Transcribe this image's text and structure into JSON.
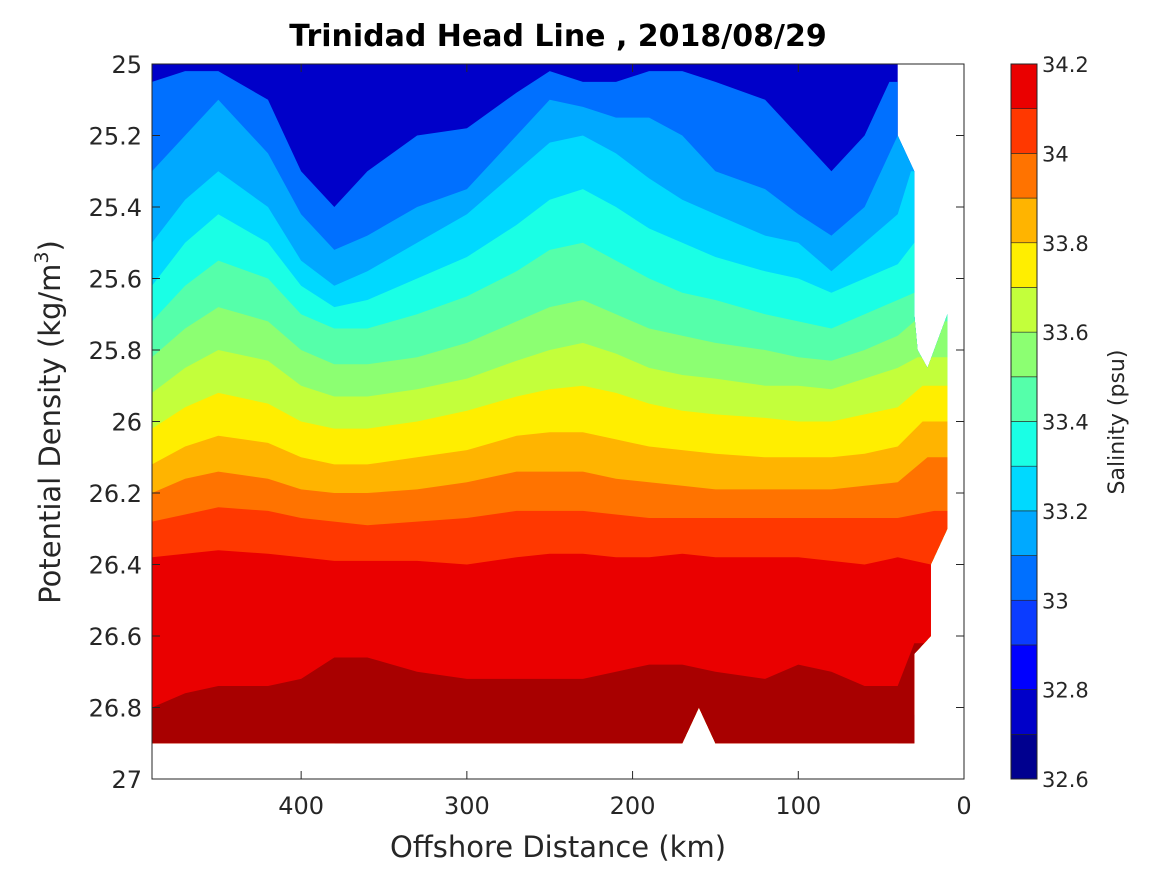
{
  "chart_data": {
    "type": "contour",
    "title": "Trinidad Head Line , 2018/08/29",
    "xlabel": "Offshore Distance (km)",
    "ylabel_prefix": "Potential Density (kg/m",
    "ylabel_sup": "3",
    "ylabel_suffix": ")",
    "colorbar_label": "Salinity (psu)",
    "xlim": [
      0,
      490
    ],
    "x_reversed": true,
    "xticks": [
      400,
      300,
      200,
      100,
      0
    ],
    "ylim": [
      25,
      27
    ],
    "y_reversed": true,
    "yticks": [
      25,
      25.2,
      25.4,
      25.6,
      25.8,
      26,
      26.2,
      26.4,
      26.6,
      26.8,
      27
    ],
    "colorbar_range": [
      32.6,
      34.2
    ],
    "colorbar_ticks": [
      32.6,
      32.8,
      33,
      33.2,
      33.4,
      33.6,
      33.8,
      34,
      34.2
    ],
    "levels": [
      32.6,
      32.7,
      32.8,
      32.9,
      33.0,
      33.1,
      33.2,
      33.3,
      33.4,
      33.5,
      33.6,
      33.7,
      33.8,
      33.9,
      34.0,
      34.1,
      34.2
    ],
    "level_colors": [
      "#00008f",
      "#0000c9",
      "#0000ff",
      "#0b3cff",
      "#0070ff",
      "#00a9ff",
      "#00d9ff",
      "#1affe5",
      "#55ffaa",
      "#8cff72",
      "#c3ff3b",
      "#ffee00",
      "#ffb400",
      "#ff7300",
      "#ff3800",
      "#ea0000",
      "#a80000"
    ],
    "data_extent": {
      "density_max": 26.9,
      "offshore_edge_km": [
        40,
        40,
        30,
        30,
        28,
        22,
        10,
        10,
        20,
        20,
        30,
        30
      ],
      "offshore_edge_density": [
        25.0,
        25.2,
        25.3,
        25.7,
        25.8,
        25.85,
        25.7,
        26.3,
        26.4,
        26.6,
        26.65,
        26.9
      ]
    },
    "contours": [
      {
        "level": 32.9,
        "x": [
          490,
          470,
          450,
          420,
          400,
          380,
          360,
          330,
          300,
          270,
          250,
          230,
          210,
          190,
          170,
          150,
          120,
          100,
          80,
          60,
          45
        ],
        "y": [
          25.05,
          25.02,
          25.02,
          25.1,
          25.3,
          25.4,
          25.3,
          25.2,
          25.18,
          25.08,
          25.02,
          25.05,
          25.05,
          25.02,
          25.02,
          25.05,
          25.1,
          25.2,
          25.3,
          25.2,
          25.05
        ]
      },
      {
        "level": 33.0,
        "x": [
          490,
          470,
          450,
          420,
          400,
          380,
          360,
          330,
          300,
          270,
          250,
          230,
          210,
          190,
          170,
          150,
          120,
          100,
          80,
          60,
          40
        ],
        "y": [
          25.3,
          25.2,
          25.1,
          25.25,
          25.42,
          25.52,
          25.48,
          25.4,
          25.35,
          25.2,
          25.1,
          25.12,
          25.15,
          25.15,
          25.2,
          25.3,
          25.35,
          25.42,
          25.48,
          25.4,
          25.2
        ]
      },
      {
        "level": 33.1,
        "x": [
          490,
          470,
          450,
          420,
          400,
          380,
          360,
          330,
          300,
          270,
          250,
          230,
          210,
          190,
          170,
          150,
          120,
          100,
          80,
          60,
          40,
          32
        ],
        "y": [
          25.5,
          25.38,
          25.3,
          25.4,
          25.55,
          25.62,
          25.58,
          25.5,
          25.42,
          25.3,
          25.22,
          25.2,
          25.25,
          25.32,
          25.38,
          25.42,
          25.48,
          25.5,
          25.58,
          25.5,
          25.42,
          25.3
        ]
      },
      {
        "level": 33.2,
        "x": [
          490,
          470,
          450,
          420,
          400,
          380,
          360,
          330,
          300,
          270,
          250,
          230,
          210,
          190,
          170,
          150,
          120,
          100,
          80,
          60,
          40,
          30
        ],
        "y": [
          25.62,
          25.5,
          25.42,
          25.5,
          25.62,
          25.68,
          25.66,
          25.6,
          25.54,
          25.45,
          25.38,
          25.35,
          25.4,
          25.46,
          25.5,
          25.54,
          25.58,
          25.6,
          25.64,
          25.6,
          25.56,
          25.5
        ]
      },
      {
        "level": 33.3,
        "x": [
          490,
          470,
          450,
          420,
          400,
          380,
          360,
          330,
          300,
          270,
          250,
          230,
          210,
          190,
          170,
          150,
          120,
          100,
          80,
          60,
          40,
          30
        ],
        "y": [
          25.72,
          25.62,
          25.55,
          25.6,
          25.7,
          25.74,
          25.74,
          25.7,
          25.65,
          25.58,
          25.52,
          25.5,
          25.55,
          25.6,
          25.64,
          25.66,
          25.7,
          25.72,
          25.74,
          25.7,
          25.66,
          25.64
        ]
      },
      {
        "level": 33.4,
        "x": [
          490,
          470,
          450,
          420,
          400,
          380,
          360,
          330,
          300,
          270,
          250,
          230,
          210,
          190,
          170,
          150,
          120,
          100,
          80,
          60,
          40,
          30
        ],
        "y": [
          25.82,
          25.74,
          25.68,
          25.72,
          25.8,
          25.84,
          25.84,
          25.82,
          25.78,
          25.72,
          25.68,
          25.66,
          25.7,
          25.74,
          25.76,
          25.78,
          25.8,
          25.82,
          25.83,
          25.8,
          25.76,
          25.72
        ]
      },
      {
        "level": 33.5,
        "x": [
          490,
          470,
          450,
          420,
          400,
          380,
          360,
          330,
          300,
          270,
          250,
          230,
          210,
          190,
          170,
          150,
          120,
          100,
          80,
          60,
          40,
          28
        ],
        "y": [
          25.92,
          25.85,
          25.8,
          25.83,
          25.9,
          25.93,
          25.93,
          25.91,
          25.88,
          25.83,
          25.8,
          25.78,
          25.81,
          25.85,
          25.87,
          25.88,
          25.9,
          25.9,
          25.91,
          25.88,
          25.85,
          25.82
        ]
      },
      {
        "level": 33.6,
        "x": [
          490,
          470,
          450,
          420,
          400,
          380,
          360,
          330,
          300,
          270,
          250,
          230,
          210,
          190,
          170,
          150,
          120,
          100,
          80,
          60,
          40,
          25
        ],
        "y": [
          26.02,
          25.96,
          25.92,
          25.95,
          26.0,
          26.02,
          26.02,
          26.0,
          25.97,
          25.93,
          25.91,
          25.9,
          25.92,
          25.95,
          25.97,
          25.98,
          25.99,
          26.0,
          26.0,
          25.98,
          25.96,
          25.9
        ]
      },
      {
        "level": 33.7,
        "x": [
          490,
          470,
          450,
          420,
          400,
          380,
          360,
          330,
          300,
          270,
          250,
          230,
          210,
          190,
          170,
          150,
          120,
          100,
          80,
          60,
          40,
          25
        ],
        "y": [
          26.12,
          26.07,
          26.04,
          26.06,
          26.1,
          26.12,
          26.12,
          26.1,
          26.08,
          26.04,
          26.03,
          26.03,
          26.05,
          26.07,
          26.08,
          26.09,
          26.1,
          26.1,
          26.1,
          26.09,
          26.07,
          26.0
        ]
      },
      {
        "level": 33.8,
        "x": [
          490,
          470,
          450,
          420,
          400,
          380,
          360,
          330,
          300,
          270,
          250,
          230,
          210,
          190,
          170,
          150,
          120,
          100,
          80,
          60,
          40,
          22
        ],
        "y": [
          26.2,
          26.16,
          26.14,
          26.16,
          26.19,
          26.2,
          26.2,
          26.19,
          26.17,
          26.14,
          26.14,
          26.14,
          26.16,
          26.17,
          26.18,
          26.19,
          26.19,
          26.19,
          26.19,
          26.18,
          26.17,
          26.1
        ]
      },
      {
        "level": 33.9,
        "x": [
          490,
          470,
          450,
          420,
          400,
          380,
          360,
          330,
          300,
          270,
          250,
          230,
          210,
          190,
          170,
          150,
          120,
          100,
          80,
          60,
          40,
          18
        ],
        "y": [
          26.28,
          26.26,
          26.24,
          26.25,
          26.27,
          26.28,
          26.29,
          26.28,
          26.27,
          26.25,
          26.25,
          26.25,
          26.26,
          26.27,
          26.27,
          26.27,
          26.27,
          26.27,
          26.27,
          26.27,
          26.27,
          26.25
        ]
      },
      {
        "level": 34.0,
        "x": [
          490,
          470,
          450,
          420,
          400,
          380,
          360,
          330,
          300,
          270,
          250,
          230,
          210,
          190,
          170,
          150,
          120,
          100,
          80,
          60,
          40,
          20
        ],
        "y": [
          26.38,
          26.37,
          26.36,
          26.37,
          26.38,
          26.39,
          26.39,
          26.39,
          26.4,
          26.38,
          26.37,
          26.37,
          26.38,
          26.38,
          26.37,
          26.38,
          26.38,
          26.38,
          26.39,
          26.4,
          26.38,
          26.4
        ]
      },
      {
        "level": 34.1,
        "x": [
          490,
          470,
          450,
          420,
          400,
          380,
          360,
          330,
          300,
          270,
          250,
          230,
          210,
          190,
          170,
          150,
          120,
          100,
          80,
          60,
          40,
          30
        ],
        "y": [
          26.8,
          26.76,
          26.74,
          26.74,
          26.72,
          26.66,
          26.66,
          26.7,
          26.72,
          26.72,
          26.72,
          26.72,
          26.7,
          26.68,
          26.68,
          26.7,
          26.72,
          26.68,
          26.7,
          26.74,
          26.74,
          26.62
        ]
      },
      {
        "level": 34.2,
        "x": [
          490,
          380,
          360,
          340,
          40,
          35,
          30
        ],
        "y": [
          26.9,
          26.9,
          26.88,
          26.9,
          26.9,
          26.86,
          26.82
        ]
      }
    ]
  }
}
